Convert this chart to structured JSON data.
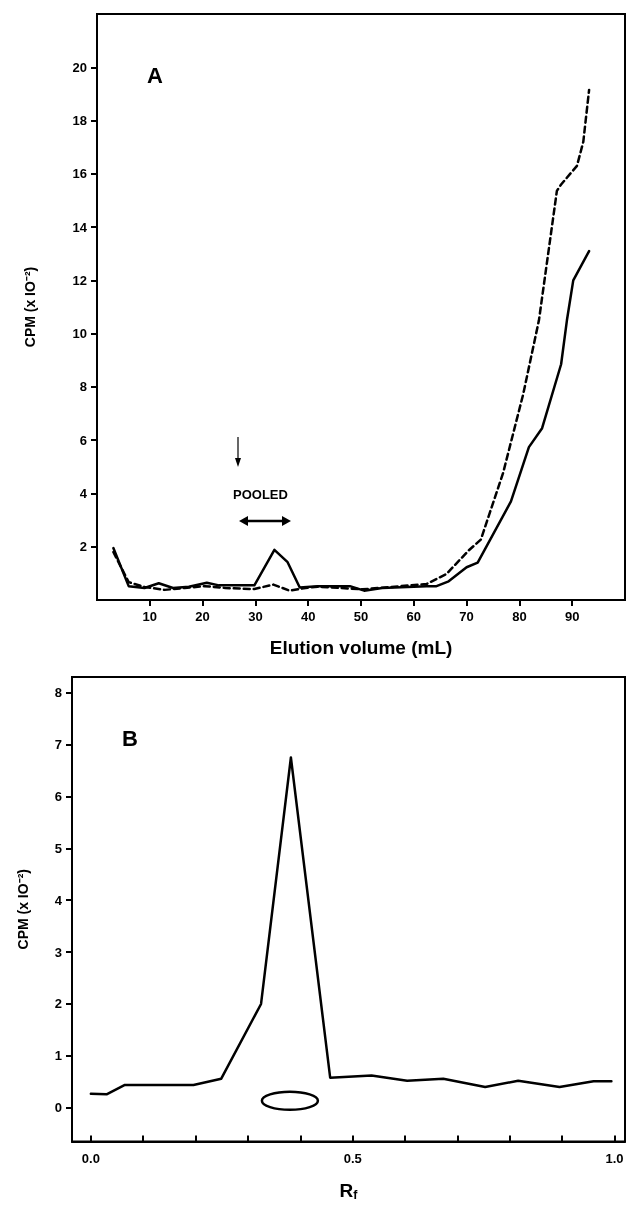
{
  "chart_data": [
    {
      "type": "line",
      "title": "A",
      "xlabel": "Elution volume (mL)",
      "ylabel": "CPM (x IO⁻²)",
      "xlim": [
        0,
        100
      ],
      "ylim": [
        0,
        22
      ],
      "xticks": [
        10,
        20,
        30,
        40,
        50,
        60,
        70,
        80,
        90
      ],
      "yticks": [
        2,
        4,
        6,
        8,
        10,
        12,
        14,
        16,
        18,
        20
      ],
      "marker": "none",
      "annotations": [
        "POOLED"
      ],
      "series": [
        {
          "color": "#000000",
          "line_style": "solid",
          "x": [
            3.1,
            6.0,
            9.0,
            11.7,
            14.4,
            17.4,
            20.8,
            23.1,
            26.6,
            29.8,
            33.6,
            36.1,
            38.4,
            41.8,
            47.9,
            50.6,
            54.0,
            62.4,
            64.3,
            66.6,
            70.0,
            72.1,
            78.4,
            81.8,
            84.3,
            87.9,
            89.0,
            90.2,
            93.2
          ],
          "values": [
            1.95,
            0.52,
            0.45,
            0.63,
            0.45,
            0.5,
            0.65,
            0.55,
            0.55,
            0.55,
            1.88,
            1.42,
            0.47,
            0.52,
            0.52,
            0.35,
            0.45,
            0.52,
            0.52,
            0.7,
            1.23,
            1.4,
            3.7,
            5.74,
            6.45,
            8.85,
            10.5,
            12.0,
            13.1
          ]
        },
        {
          "color": "#000000",
          "line_style": "dashed",
          "x": [
            3.1,
            6.0,
            9.0,
            12.8,
            16.6,
            20.4,
            24.3,
            29.8,
            33.4,
            36.5,
            39.5,
            41.8,
            50.3,
            62.4,
            66.2,
            70.4,
            72.7,
            76.9,
            80.7,
            83.7,
            87.1,
            87.9,
            90.9,
            92.1,
            93.2
          ],
          "values": [
            1.8,
            0.67,
            0.49,
            0.38,
            0.45,
            0.52,
            0.45,
            0.41,
            0.58,
            0.35,
            0.45,
            0.5,
            0.4,
            0.6,
            0.98,
            1.86,
            2.27,
            4.76,
            7.71,
            10.5,
            15.36,
            15.6,
            16.3,
            17.2,
            19.15
          ]
        }
      ]
    },
    {
      "type": "line",
      "title": "B",
      "xlabel": "R$_{f}$",
      "ylabel": "CPM (x IO⁻²)",
      "xlim": [
        -0.036,
        1.02
      ],
      "ylim": [
        -0.65,
        8.3
      ],
      "xticks": [
        {
          "value": 0,
          "label": "0.0"
        },
        {
          "value": 0.1,
          "label": null
        },
        {
          "value": 0.2,
          "label": null
        },
        {
          "value": 0.3,
          "label": null
        },
        {
          "value": 0.4,
          "label": null
        },
        {
          "value": 0.5,
          "label": "0.5"
        },
        {
          "value": 0.6,
          "label": null
        },
        {
          "value": 0.7,
          "label": null
        },
        {
          "value": 0.8,
          "label": null
        },
        {
          "value": 0.9,
          "label": null
        },
        {
          "value": 1,
          "label": "1.0"
        }
      ],
      "yticks": [
        0,
        1,
        2,
        3,
        4,
        5,
        6,
        7,
        8
      ],
      "marker": "none",
      "series": [
        {
          "color": "#000000",
          "line_style": "solid",
          "x": [
            0,
            0.03,
            0.065,
            0.196,
            0.249,
            0.325,
            0.382,
            0.457,
            0.536,
            0.604,
            0.673,
            0.753,
            0.816,
            0.895,
            0.96,
            0.994
          ],
          "values": [
            0.27,
            0.26,
            0.44,
            0.44,
            0.56,
            2.0,
            6.75,
            0.58,
            0.62,
            0.52,
            0.56,
            0.4,
            0.52,
            0.4,
            0.51,
            0.51
          ]
        }
      ]
    }
  ]
}
